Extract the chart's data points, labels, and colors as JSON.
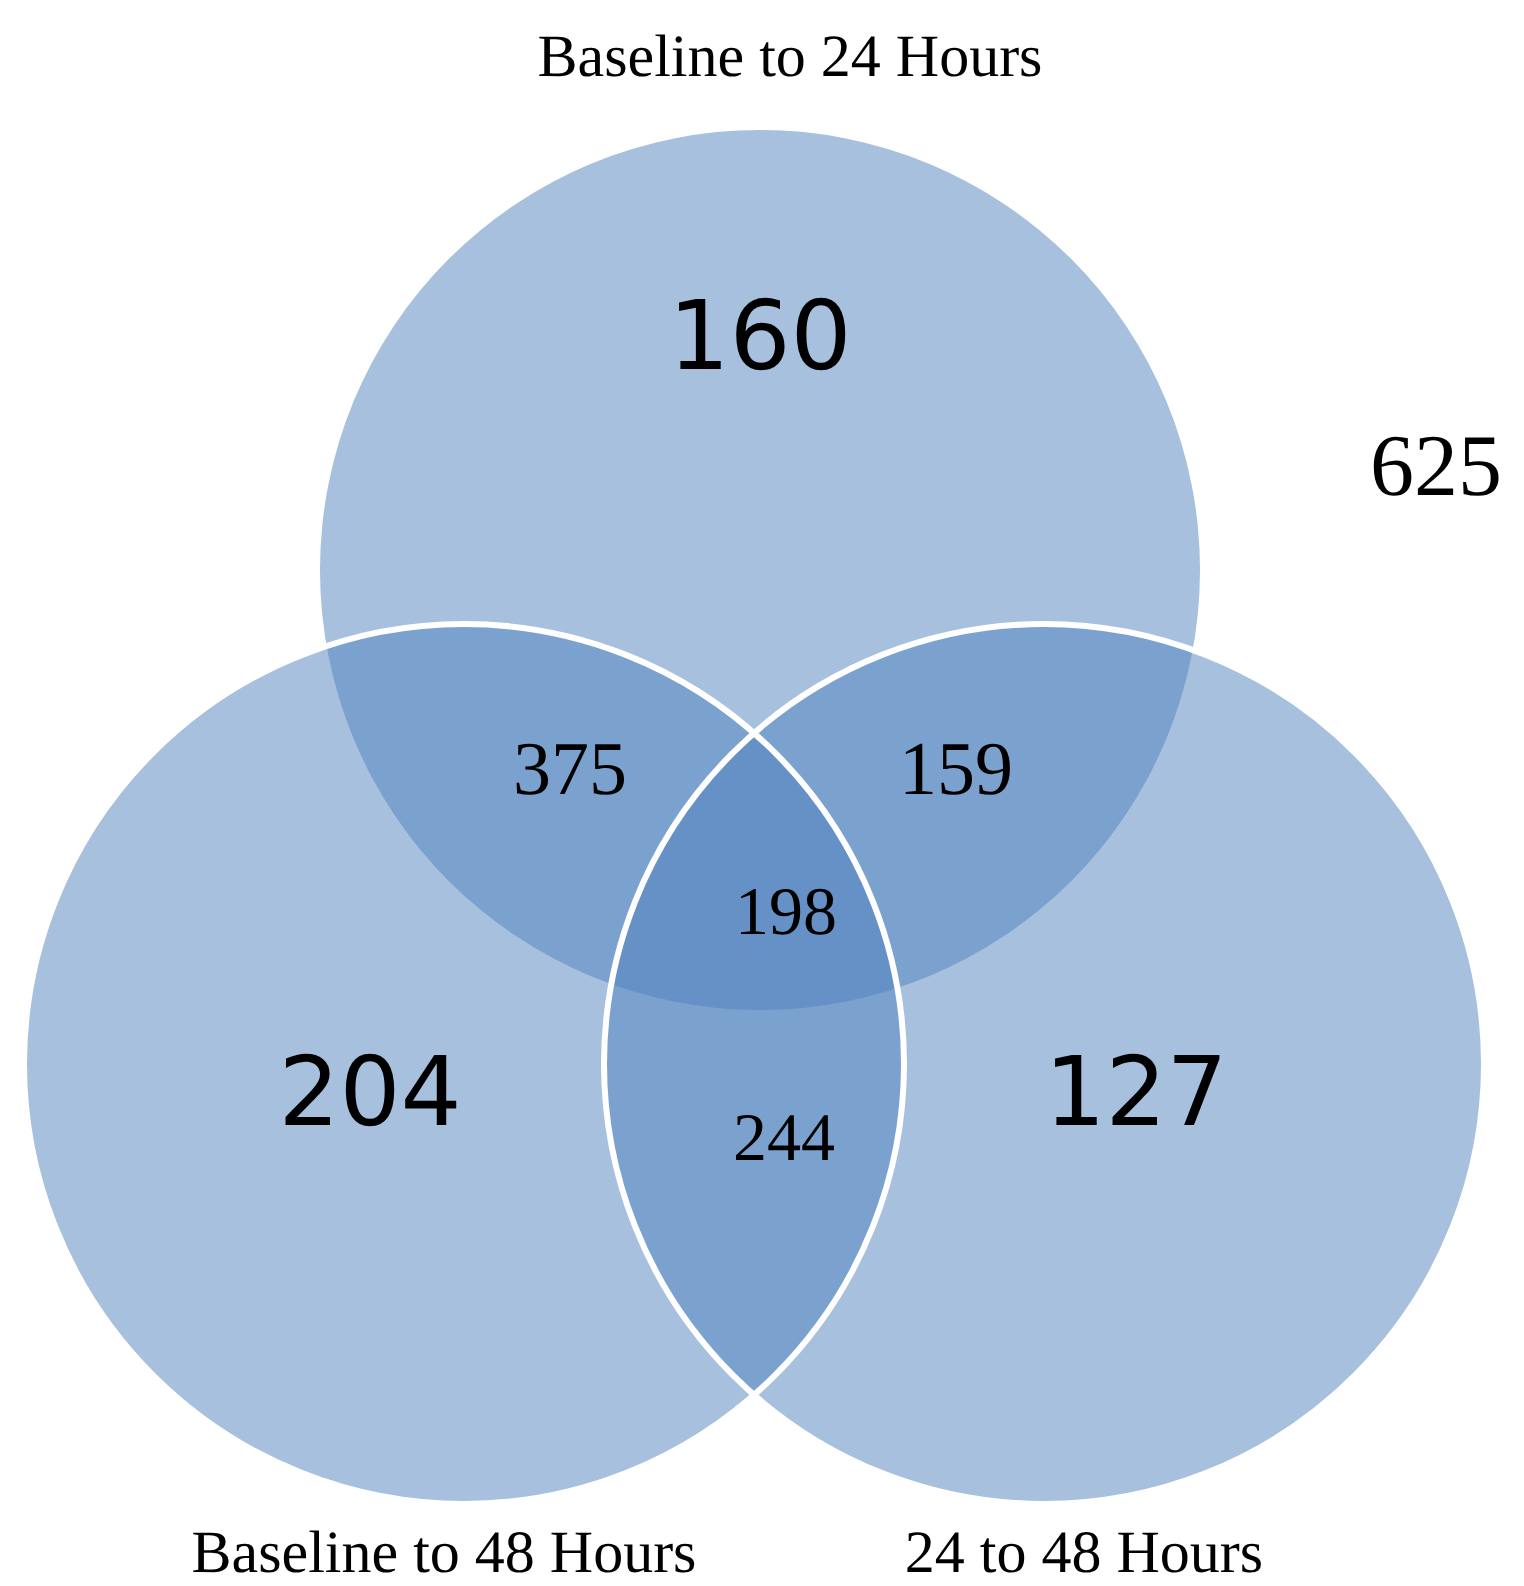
{
  "chart_data": {
    "type": "other",
    "categories": [
      "Baseline to 24 Hours",
      "Baseline to 48 Hours",
      "24 to 48 Hours"
    ],
    "values": [
      160,
      204,
      127
    ],
    "annotations": [
      "375",
      "159",
      "244",
      "198",
      "625"
    ],
    "color": "#4f81bd",
    "data_labels": true
  }
}
